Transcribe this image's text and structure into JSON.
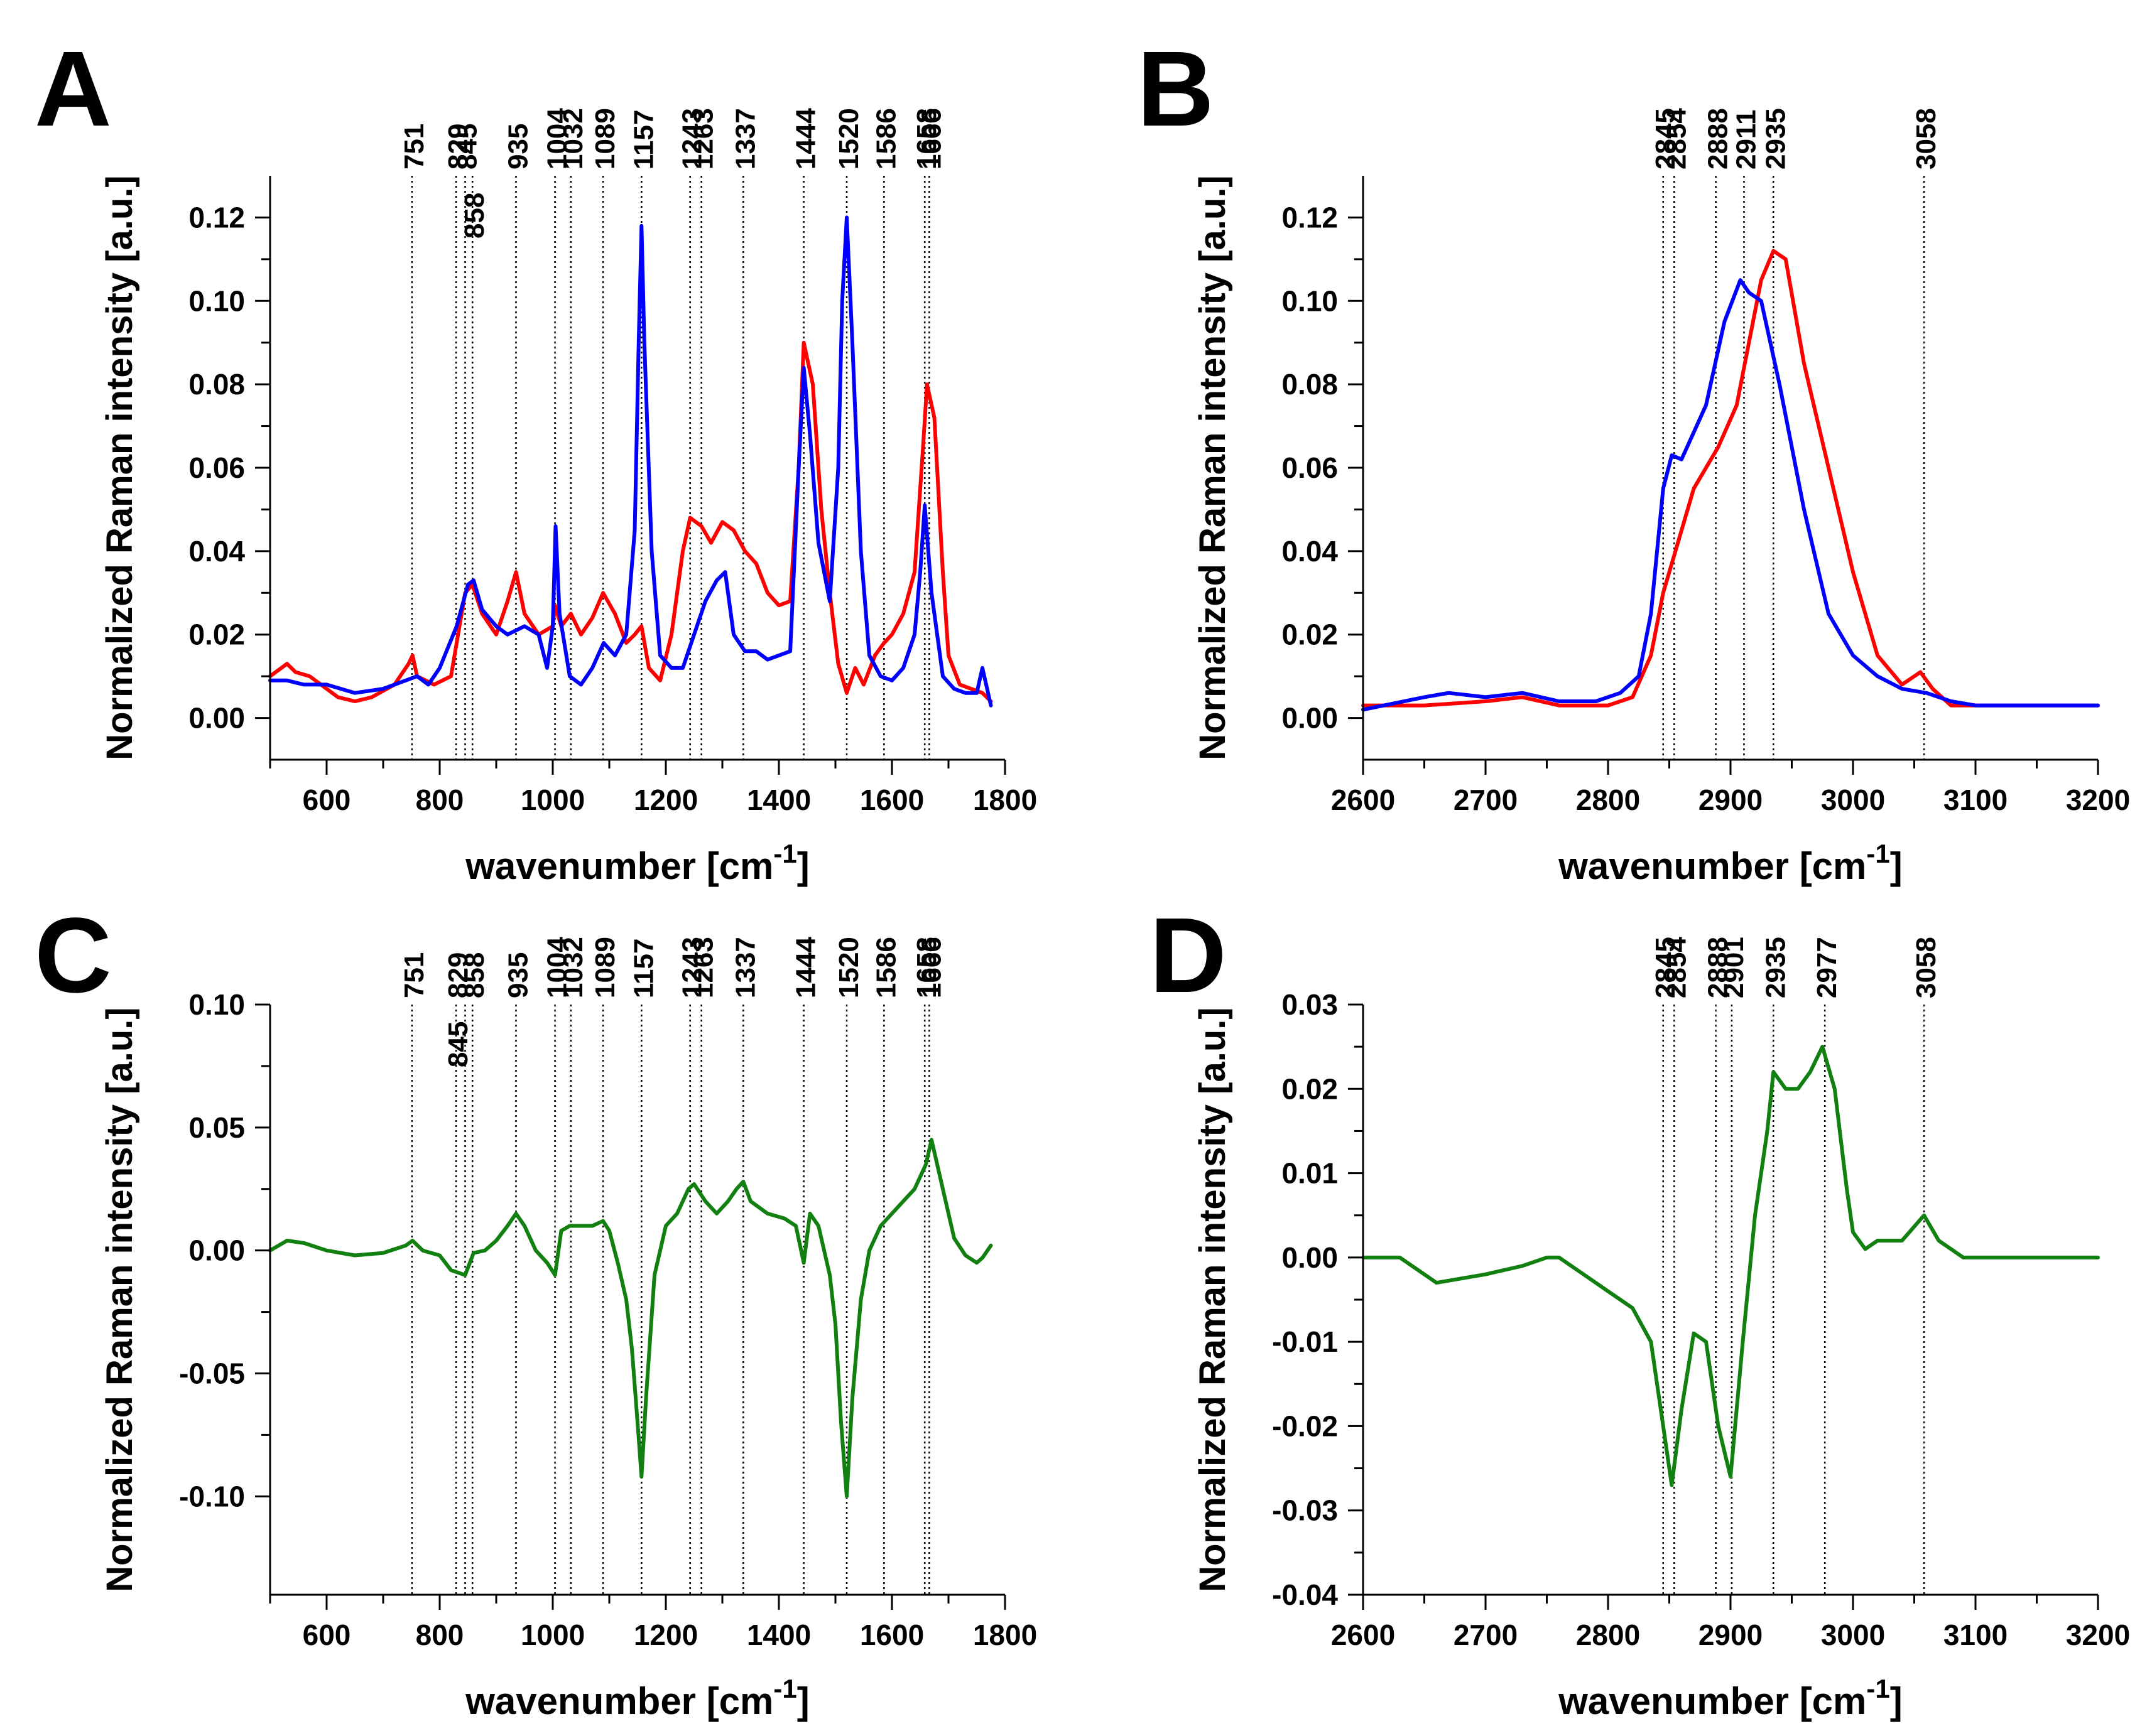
{
  "figure": {
    "panels": [
      "A",
      "B",
      "C",
      "D"
    ]
  },
  "colors": {
    "red": "#ff0000",
    "blue": "#0000ff",
    "green": "#118011",
    "guide": "#000000"
  },
  "chart_data": [
    {
      "panel": "A",
      "type": "line",
      "xlabel_main": "wavenumber [cm",
      "xlabel_sup": "-1",
      "xlabel_end": "]",
      "ylabel": "Normalized Raman intensity [a.u.]",
      "xlim": [
        500,
        1800
      ],
      "ylim": [
        -0.01,
        0.13
      ],
      "xticks": [
        600,
        800,
        1000,
        1200,
        1400,
        1600,
        1800
      ],
      "yticks": [
        0.0,
        0.02,
        0.04,
        0.06,
        0.08,
        0.1,
        0.12
      ],
      "ytick_labels": [
        "0.00",
        "0.02",
        "0.04",
        "0.06",
        "0.08",
        "0.10",
        "0.12"
      ],
      "peak_lines": [
        751,
        829,
        845,
        858,
        935,
        1004,
        1032,
        1089,
        1157,
        1243,
        1263,
        1337,
        1444,
        1520,
        1586,
        1658,
        1666
      ],
      "peak_labels": [
        {
          "text": "751",
          "x": 751,
          "row": 0
        },
        {
          "text": "829",
          "x": 829,
          "row": 0
        },
        {
          "text": "845",
          "x": 845,
          "row": 0
        },
        {
          "text": "858",
          "x": 858,
          "row": 1
        },
        {
          "text": "935",
          "x": 935,
          "row": 0
        },
        {
          "text": "1004",
          "x": 1004,
          "row": 0
        },
        {
          "text": "1032",
          "x": 1032,
          "row": 0
        },
        {
          "text": "1089",
          "x": 1089,
          "row": 0
        },
        {
          "text": "1157",
          "x": 1157,
          "row": 0
        },
        {
          "text": "1243",
          "x": 1243,
          "row": 0
        },
        {
          "text": "1263",
          "x": 1263,
          "row": 0
        },
        {
          "text": "1337",
          "x": 1337,
          "row": 0
        },
        {
          "text": "1444",
          "x": 1444,
          "row": 0
        },
        {
          "text": "1520",
          "x": 1520,
          "row": 0
        },
        {
          "text": "1586",
          "x": 1586,
          "row": 0
        },
        {
          "text": "1658",
          "x": 1658,
          "row": 0
        },
        {
          "text": "1666",
          "x": 1666,
          "row": 0
        }
      ],
      "series": [
        {
          "name": "red",
          "color": "#ff0000",
          "x": [
            500,
            530,
            545,
            570,
            600,
            620,
            650,
            680,
            720,
            745,
            752,
            760,
            790,
            820,
            845,
            858,
            875,
            900,
            920,
            935,
            950,
            975,
            1000,
            1004,
            1015,
            1032,
            1050,
            1070,
            1089,
            1110,
            1130,
            1145,
            1157,
            1170,
            1190,
            1210,
            1230,
            1243,
            1263,
            1280,
            1300,
            1320,
            1340,
            1360,
            1380,
            1400,
            1420,
            1435,
            1444,
            1460,
            1475,
            1490,
            1505,
            1520,
            1535,
            1550,
            1570,
            1586,
            1600,
            1620,
            1640,
            1655,
            1662,
            1675,
            1690,
            1700,
            1720,
            1740,
            1760,
            1775
          ],
          "y": [
            0.01,
            0.013,
            0.011,
            0.01,
            0.007,
            0.005,
            0.004,
            0.005,
            0.008,
            0.013,
            0.015,
            0.01,
            0.008,
            0.01,
            0.03,
            0.032,
            0.025,
            0.02,
            0.028,
            0.035,
            0.025,
            0.02,
            0.022,
            0.027,
            0.022,
            0.025,
            0.02,
            0.024,
            0.03,
            0.025,
            0.018,
            0.02,
            0.022,
            0.012,
            0.009,
            0.02,
            0.04,
            0.048,
            0.046,
            0.042,
            0.047,
            0.045,
            0.04,
            0.037,
            0.03,
            0.027,
            0.028,
            0.06,
            0.09,
            0.08,
            0.05,
            0.03,
            0.013,
            0.006,
            0.012,
            0.008,
            0.015,
            0.018,
            0.02,
            0.025,
            0.035,
            0.065,
            0.08,
            0.072,
            0.035,
            0.015,
            0.008,
            0.007,
            0.006,
            0.004
          ]
        },
        {
          "name": "blue",
          "color": "#0000ff",
          "x": [
            500,
            530,
            560,
            600,
            650,
            700,
            740,
            760,
            780,
            800,
            830,
            850,
            860,
            875,
            900,
            920,
            950,
            975,
            990,
            1000,
            1005,
            1012,
            1030,
            1050,
            1070,
            1090,
            1110,
            1130,
            1145,
            1152,
            1157,
            1162,
            1175,
            1190,
            1210,
            1230,
            1250,
            1270,
            1290,
            1305,
            1320,
            1340,
            1360,
            1380,
            1400,
            1420,
            1435,
            1444,
            1455,
            1470,
            1490,
            1505,
            1512,
            1520,
            1530,
            1545,
            1560,
            1580,
            1600,
            1620,
            1640,
            1650,
            1658,
            1670,
            1690,
            1710,
            1730,
            1750,
            1760,
            1775
          ],
          "y": [
            0.009,
            0.009,
            0.008,
            0.008,
            0.006,
            0.007,
            0.009,
            0.01,
            0.008,
            0.012,
            0.022,
            0.032,
            0.033,
            0.026,
            0.022,
            0.02,
            0.022,
            0.02,
            0.012,
            0.022,
            0.046,
            0.025,
            0.01,
            0.008,
            0.012,
            0.018,
            0.015,
            0.02,
            0.045,
            0.09,
            0.118,
            0.09,
            0.04,
            0.015,
            0.012,
            0.012,
            0.02,
            0.028,
            0.033,
            0.035,
            0.02,
            0.016,
            0.016,
            0.014,
            0.015,
            0.016,
            0.06,
            0.084,
            0.068,
            0.042,
            0.028,
            0.06,
            0.1,
            0.12,
            0.09,
            0.04,
            0.015,
            0.01,
            0.009,
            0.012,
            0.02,
            0.035,
            0.051,
            0.03,
            0.01,
            0.007,
            0.006,
            0.006,
            0.012,
            0.003
          ]
        }
      ]
    },
    {
      "panel": "B",
      "type": "line",
      "xlabel_main": "wavenumber [cm",
      "xlabel_sup": "-1",
      "xlabel_end": "]",
      "ylabel": "Normalized Raman intensity [a.u.]",
      "xlim": [
        2600,
        3200
      ],
      "ylim": [
        -0.01,
        0.13
      ],
      "xticks": [
        2600,
        2700,
        2800,
        2900,
        3000,
        3100,
        3200
      ],
      "yticks": [
        0.0,
        0.02,
        0.04,
        0.06,
        0.08,
        0.1,
        0.12
      ],
      "ytick_labels": [
        "0.00",
        "0.02",
        "0.04",
        "0.06",
        "0.08",
        "0.10",
        "0.12"
      ],
      "peak_lines": [
        2845,
        2854,
        2888,
        2911,
        2935,
        3058
      ],
      "peak_labels": [
        {
          "text": "2845",
          "x": 2845,
          "row": 0
        },
        {
          "text": "2854",
          "x": 2854,
          "row": 0
        },
        {
          "text": "2888",
          "x": 2888,
          "row": 0
        },
        {
          "text": "2911",
          "x": 2911,
          "row": 0
        },
        {
          "text": "2935",
          "x": 2935,
          "row": 0
        },
        {
          "text": "3058",
          "x": 3058,
          "row": 0
        }
      ],
      "series": [
        {
          "name": "red",
          "color": "#ff0000",
          "x": [
            2600,
            2650,
            2700,
            2730,
            2760,
            2800,
            2820,
            2835,
            2845,
            2855,
            2870,
            2890,
            2905,
            2915,
            2925,
            2935,
            2945,
            2960,
            2980,
            3000,
            3020,
            3040,
            3055,
            3065,
            3080,
            3100,
            3150,
            3200
          ],
          "y": [
            0.003,
            0.003,
            0.004,
            0.005,
            0.003,
            0.003,
            0.005,
            0.015,
            0.03,
            0.04,
            0.055,
            0.065,
            0.075,
            0.09,
            0.105,
            0.112,
            0.11,
            0.085,
            0.06,
            0.035,
            0.015,
            0.008,
            0.011,
            0.007,
            0.003,
            0.003,
            0.003,
            0.003
          ]
        },
        {
          "name": "blue",
          "color": "#0000ff",
          "x": [
            2600,
            2650,
            2670,
            2700,
            2730,
            2760,
            2790,
            2810,
            2825,
            2835,
            2845,
            2852,
            2860,
            2880,
            2895,
            2908,
            2915,
            2925,
            2940,
            2960,
            2980,
            3000,
            3020,
            3040,
            3060,
            3080,
            3100,
            3150,
            3200
          ],
          "y": [
            0.002,
            0.005,
            0.006,
            0.005,
            0.006,
            0.004,
            0.004,
            0.006,
            0.01,
            0.025,
            0.055,
            0.063,
            0.062,
            0.075,
            0.095,
            0.105,
            0.102,
            0.1,
            0.08,
            0.05,
            0.025,
            0.015,
            0.01,
            0.007,
            0.006,
            0.004,
            0.003,
            0.003,
            0.003
          ]
        }
      ]
    },
    {
      "panel": "C",
      "type": "line",
      "xlabel_main": "wavenumber [cm",
      "xlabel_sup": "-1",
      "xlabel_end": "]",
      "ylabel": "Normalized Raman intensity [a.u.]",
      "xlim": [
        500,
        1800
      ],
      "ylim": [
        -0.14,
        0.1
      ],
      "xticks": [
        600,
        800,
        1000,
        1200,
        1400,
        1600,
        1800
      ],
      "yticks": [
        -0.1,
        -0.05,
        0.0,
        0.05,
        0.1
      ],
      "ytick_labels": [
        "-0.10",
        "-0.05",
        "0.00",
        "0.05",
        "0.10"
      ],
      "peak_lines": [
        751,
        829,
        845,
        858,
        935,
        1004,
        1032,
        1089,
        1157,
        1243,
        1263,
        1337,
        1444,
        1520,
        1586,
        1658,
        1666
      ],
      "peak_labels": [
        {
          "text": "751",
          "x": 751,
          "row": 0
        },
        {
          "text": "829",
          "x": 829,
          "row": 0
        },
        {
          "text": "845",
          "x": 829,
          "row": 1
        },
        {
          "text": "858",
          "x": 858,
          "row": 0
        },
        {
          "text": "935",
          "x": 935,
          "row": 0
        },
        {
          "text": "1004",
          "x": 1004,
          "row": 0
        },
        {
          "text": "1032",
          "x": 1032,
          "row": 0
        },
        {
          "text": "1089",
          "x": 1089,
          "row": 0
        },
        {
          "text": "1157",
          "x": 1157,
          "row": 0
        },
        {
          "text": "1243",
          "x": 1243,
          "row": 0
        },
        {
          "text": "1263",
          "x": 1263,
          "row": 0
        },
        {
          "text": "1337",
          "x": 1337,
          "row": 0
        },
        {
          "text": "1444",
          "x": 1444,
          "row": 0
        },
        {
          "text": "1520",
          "x": 1520,
          "row": 0
        },
        {
          "text": "1586",
          "x": 1586,
          "row": 0
        },
        {
          "text": "1658",
          "x": 1658,
          "row": 0
        },
        {
          "text": "1666",
          "x": 1666,
          "row": 0
        }
      ],
      "series": [
        {
          "name": "green",
          "color": "#118011",
          "x": [
            500,
            530,
            560,
            600,
            650,
            700,
            740,
            752,
            770,
            800,
            820,
            845,
            860,
            880,
            900,
            920,
            935,
            950,
            970,
            990,
            1004,
            1015,
            1030,
            1050,
            1070,
            1089,
            1100,
            1115,
            1130,
            1140,
            1150,
            1157,
            1165,
            1180,
            1200,
            1220,
            1240,
            1250,
            1270,
            1290,
            1310,
            1325,
            1337,
            1350,
            1380,
            1410,
            1430,
            1444,
            1455,
            1470,
            1490,
            1500,
            1510,
            1520,
            1530,
            1545,
            1560,
            1580,
            1600,
            1620,
            1640,
            1660,
            1670,
            1690,
            1710,
            1730,
            1750,
            1760,
            1775
          ],
          "y": [
            0.0,
            0.004,
            0.003,
            0.0,
            -0.002,
            -0.001,
            0.002,
            0.004,
            0.0,
            -0.002,
            -0.008,
            -0.01,
            -0.001,
            0.0,
            0.004,
            0.01,
            0.015,
            0.01,
            0.0,
            -0.005,
            -0.01,
            0.008,
            0.01,
            0.01,
            0.01,
            0.012,
            0.008,
            -0.005,
            -0.02,
            -0.04,
            -0.07,
            -0.092,
            -0.06,
            -0.01,
            0.01,
            0.015,
            0.025,
            0.027,
            0.02,
            0.015,
            0.02,
            0.025,
            0.028,
            0.02,
            0.015,
            0.013,
            0.01,
            -0.005,
            0.015,
            0.01,
            -0.01,
            -0.03,
            -0.07,
            -0.1,
            -0.06,
            -0.02,
            0.0,
            0.01,
            0.015,
            0.02,
            0.025,
            0.035,
            0.045,
            0.025,
            0.005,
            -0.002,
            -0.005,
            -0.003,
            0.002
          ]
        }
      ]
    },
    {
      "panel": "D",
      "type": "line",
      "xlabel_main": "wavenumber [cm",
      "xlabel_sup": "-1",
      "xlabel_end": "]",
      "ylabel": "Normalized Raman intensity [a.u.]",
      "xlim": [
        2600,
        3200
      ],
      "ylim": [
        -0.04,
        0.03
      ],
      "xticks": [
        2600,
        2700,
        2800,
        2900,
        3000,
        3100,
        3200
      ],
      "yticks": [
        -0.04,
        -0.03,
        -0.02,
        -0.01,
        0.0,
        0.01,
        0.02,
        0.03
      ],
      "ytick_labels": [
        "-0.04",
        "-0.03",
        "-0.02",
        "-0.01",
        "0.00",
        "0.01",
        "0.02",
        "0.03"
      ],
      "peak_lines": [
        2845,
        2854,
        2888,
        2901,
        2935,
        2977,
        3058
      ],
      "peak_labels": [
        {
          "text": "2845",
          "x": 2845,
          "row": 0
        },
        {
          "text": "2854",
          "x": 2854,
          "row": 0
        },
        {
          "text": "2888",
          "x": 2888,
          "row": 0
        },
        {
          "text": "2901",
          "x": 2901,
          "row": 0
        },
        {
          "text": "2935",
          "x": 2935,
          "row": 0
        },
        {
          "text": "2977",
          "x": 2977,
          "row": 0
        },
        {
          "text": "3058",
          "x": 3058,
          "row": 0
        }
      ],
      "series": [
        {
          "name": "green",
          "color": "#118011",
          "x": [
            2600,
            2630,
            2660,
            2700,
            2730,
            2750,
            2760,
            2780,
            2800,
            2820,
            2835,
            2845,
            2852,
            2860,
            2870,
            2880,
            2890,
            2900,
            2910,
            2920,
            2930,
            2935,
            2945,
            2955,
            2965,
            2975,
            2985,
            2995,
            3000,
            3010,
            3020,
            3040,
            3058,
            3070,
            3090,
            3120,
            3150,
            3200
          ],
          "y": [
            0.0,
            0.0,
            -0.003,
            -0.002,
            -0.001,
            0.0,
            0.0,
            -0.002,
            -0.004,
            -0.006,
            -0.01,
            -0.02,
            -0.027,
            -0.018,
            -0.009,
            -0.01,
            -0.02,
            -0.026,
            -0.01,
            0.005,
            0.015,
            0.022,
            0.02,
            0.02,
            0.022,
            0.025,
            0.02,
            0.008,
            0.003,
            0.001,
            0.002,
            0.002,
            0.005,
            0.002,
            0.0,
            0.0,
            0.0,
            0.0
          ]
        }
      ]
    }
  ]
}
